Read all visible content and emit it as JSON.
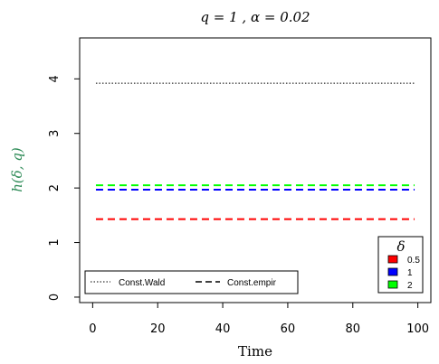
{
  "chart_data": {
    "type": "line",
    "title": "q = 1 ,  α = 0.02",
    "xlabel": "Time",
    "ylabel": "h(δ, q)",
    "xlim": [
      -4,
      104
    ],
    "ylim": [
      -0.1,
      4.75
    ],
    "x_ticks": [
      0,
      20,
      40,
      60,
      80,
      100
    ],
    "y_ticks": [
      0,
      1,
      2,
      3,
      4
    ],
    "grid": false,
    "x": [
      1,
      99
    ],
    "series": [
      {
        "name": "Const.Wald",
        "style": "dotted",
        "color": "#000000",
        "values": [
          3.92,
          3.92
        ]
      },
      {
        "name": "0.5",
        "style": "dashed",
        "color": "#ff0000",
        "values": [
          1.43,
          1.43
        ]
      },
      {
        "name": "1",
        "style": "dashed",
        "color": "#0000ff",
        "values": [
          1.97,
          1.97
        ]
      },
      {
        "name": "2",
        "style": "dashed",
        "color": "#00ff00",
        "values": [
          2.05,
          2.05
        ]
      }
    ],
    "legend_linetype": {
      "placement": "bottom-left",
      "entries": [
        {
          "label": "Const.Wald",
          "style": "dotted"
        },
        {
          "label": "Const.empir",
          "style": "dashed"
        }
      ]
    },
    "legend_delta": {
      "placement": "bottom-right",
      "title": "δ",
      "entries": [
        {
          "label": "0.5",
          "color": "#ff0000"
        },
        {
          "label": "1",
          "color": "#0000ff"
        },
        {
          "label": "2",
          "color": "#00ff00"
        }
      ]
    },
    "ylabel_color": "#2e8b57"
  }
}
